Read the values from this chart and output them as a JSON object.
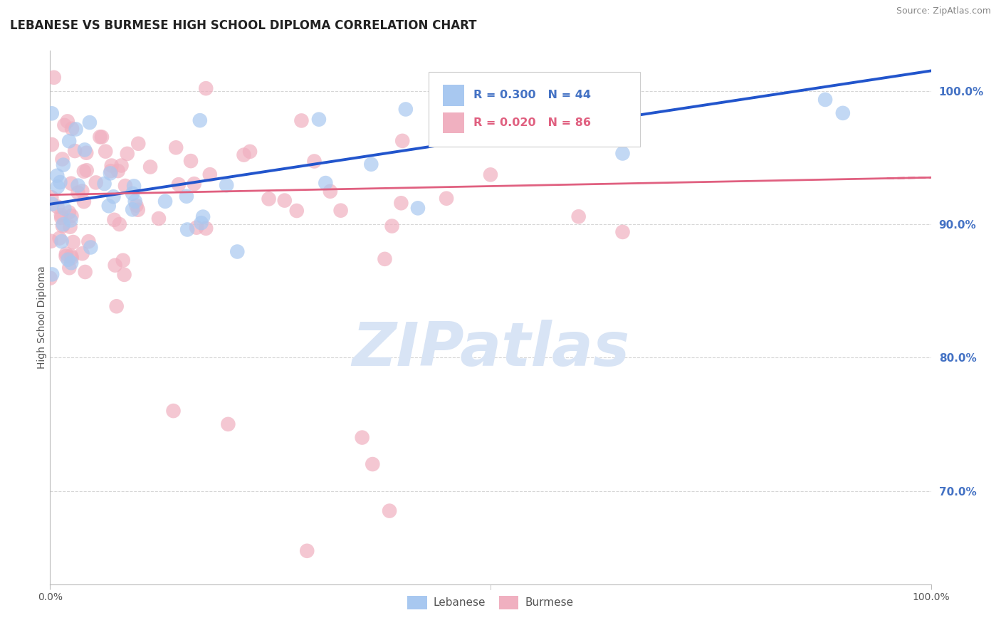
{
  "title": "LEBANESE VS BURMESE HIGH SCHOOL DIPLOMA CORRELATION CHART",
  "source": "Source: ZipAtlas.com",
  "ylabel": "High School Diploma",
  "blue_color": "#A8C8F0",
  "pink_color": "#F0B0C0",
  "blue_line_color": "#2255CC",
  "pink_line_color": "#E06080",
  "legend_blue_color": "#4472C4",
  "legend_pink_color": "#E06080",
  "tick_color": "#4472C4",
  "background_color": "#FFFFFF",
  "watermark_color": "#D8E4F5",
  "grid_color": "#CCCCCC",
  "x_min": 0,
  "x_max": 100,
  "y_min": 63,
  "y_max": 103,
  "yticks": [
    70,
    80,
    90,
    100
  ],
  "ytick_labels": [
    "70.0%",
    "80.0%",
    "90.0%",
    "100.0%"
  ],
  "xticks": [
    0,
    100
  ],
  "xtick_labels": [
    "0.0%",
    "100.0%"
  ],
  "lb_R": 0.3,
  "lb_N": 44,
  "bm_R": 0.02,
  "bm_N": 86,
  "lb_line_x0": 0,
  "lb_line_y0": 91.5,
  "lb_line_x1": 100,
  "lb_line_y1": 101.5,
  "bm_line_x0": 0,
  "bm_line_y0": 92.2,
  "bm_line_x1": 100,
  "bm_line_y1": 93.5
}
